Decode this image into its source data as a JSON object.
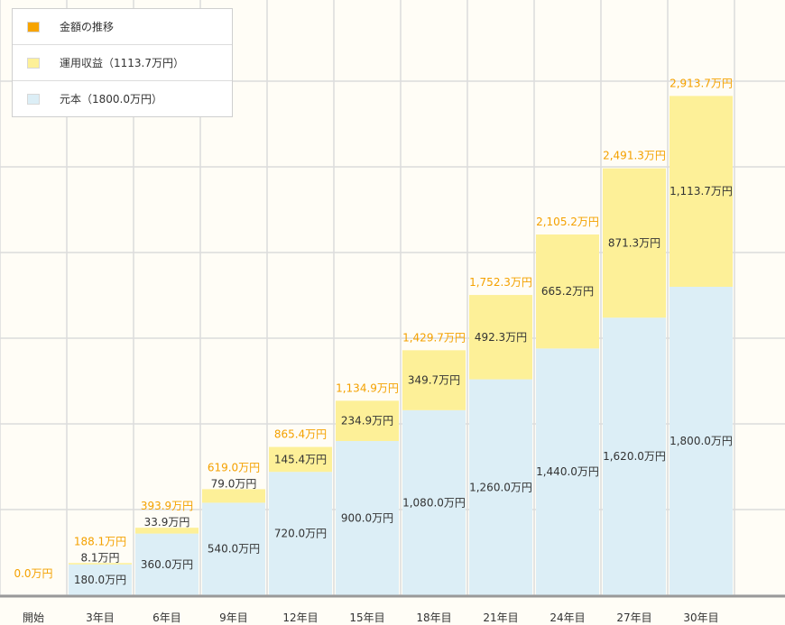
{
  "legend": {
    "total_label": "金額の推移",
    "gain_label": "運用収益（1113.7万円）",
    "principal_label": "元本（1800.0万円）"
  },
  "colors": {
    "background": "#fffdf6",
    "grid": "#dcdcdc",
    "principal": "#dceef6",
    "gain": "#fdf098",
    "total_text": "#f4a100",
    "value_text": "#333333",
    "axis": "#999999"
  },
  "chart_data": {
    "type": "bar",
    "stacked": true,
    "title": "",
    "xlabel": "",
    "ylabel": "",
    "ylim": [
      0,
      3000
    ],
    "categories": [
      "開始",
      "3年目",
      "6年目",
      "9年目",
      "12年目",
      "15年目",
      "18年目",
      "21年目",
      "24年目",
      "27年目",
      "30年目"
    ],
    "series": [
      {
        "name": "元本",
        "values": [
          0,
          180.0,
          360.0,
          540.0,
          720.0,
          900.0,
          1080.0,
          1260.0,
          1440.0,
          1620.0,
          1800.0
        ]
      },
      {
        "name": "運用収益",
        "values": [
          0,
          8.1,
          33.9,
          79.0,
          145.4,
          234.9,
          349.7,
          492.3,
          665.2,
          871.3,
          1113.7
        ]
      }
    ],
    "totals": [
      0.0,
      188.1,
      393.9,
      619.0,
      865.4,
      1134.9,
      1429.7,
      1752.3,
      2105.2,
      2491.3,
      2913.7
    ],
    "principal_labels": [
      "",
      "180.0万円",
      "360.0万円",
      "540.0万円",
      "720.0万円",
      "900.0万円",
      "1,080.0万円",
      "1,260.0万円",
      "1,440.0万円",
      "1,620.0万円",
      "1,800.0万円"
    ],
    "gain_labels": [
      "",
      "8.1万円",
      "33.9万円",
      "79.0万円",
      "145.4万円",
      "234.9万円",
      "349.7万円",
      "492.3万円",
      "665.2万円",
      "871.3万円",
      "1,113.7万円"
    ],
    "total_labels": [
      "0.0万円",
      "188.1万円",
      "393.9万円",
      "619.0万円",
      "865.4万円",
      "1,134.9万円",
      "1,429.7万円",
      "1,752.3万円",
      "2,105.2万円",
      "2,491.3万円",
      "2,913.7万円"
    ]
  }
}
